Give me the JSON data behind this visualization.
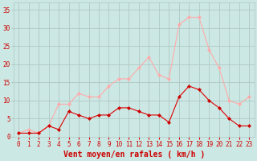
{
  "hours": [
    0,
    1,
    2,
    3,
    4,
    5,
    6,
    7,
    8,
    9,
    10,
    11,
    12,
    13,
    14,
    15,
    16,
    17,
    18,
    19,
    20,
    21,
    22,
    23
  ],
  "wind_avg": [
    1,
    1,
    1,
    3,
    2,
    7,
    6,
    5,
    6,
    6,
    8,
    8,
    7,
    6,
    6,
    4,
    11,
    14,
    13,
    10,
    8,
    5,
    3,
    3
  ],
  "wind_gust": [
    1,
    2,
    1,
    3,
    9,
    9,
    12,
    11,
    11,
    14,
    16,
    16,
    19,
    22,
    17,
    16,
    31,
    33,
    33,
    24,
    19,
    10,
    9,
    11
  ],
  "bg_color": "#cce8e4",
  "grid_color": "#b0c8c4",
  "line_avg_color": "#dd0000",
  "line_gust_color": "#ffaaaa",
  "marker_avg_color": "#cc0000",
  "marker_gust_color": "#ffaaaa",
  "xlabel": "Vent moyen/en rafales ( km/h )",
  "xlabel_color": "#cc0000",
  "tick_label_color": "#cc0000",
  "yticks": [
    0,
    5,
    10,
    15,
    20,
    25,
    30,
    35
  ],
  "ylim": [
    0,
    37
  ],
  "xlim": [
    -0.5,
    23.5
  ],
  "tick_fontsize": 5.5,
  "xlabel_fontsize": 7.0
}
